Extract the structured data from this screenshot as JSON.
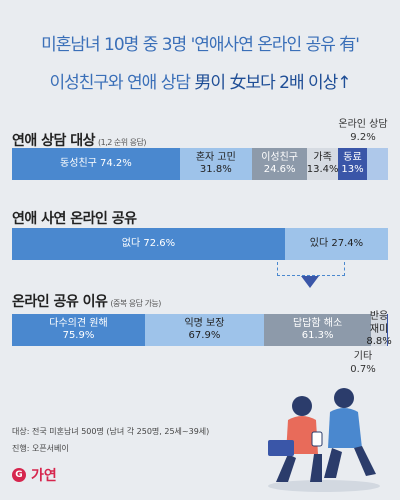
{
  "header": {
    "line1": "미혼남녀 10명 중 3명 '연애사연 온라인 공유 有'",
    "line2_a": "이성친구와 연애 상담 ",
    "line2_b": "男이 女보다 2배 이상↑"
  },
  "chart_data": [
    {
      "type": "bar",
      "title": "연애 상담 대상",
      "subtitle": "(1,2 순위 응답)",
      "categories": [
        "동성친구",
        "혼자 고민",
        "이성친구",
        "가족",
        "동료",
        "온라인 상담"
      ],
      "labels": [
        "동성친구 74.2%",
        "혼자 고민\n31.8%",
        "이성친구\n24.6%",
        "가족\n13.4%",
        "동료\n13%",
        "온라인 상담\n9.2%"
      ],
      "values": [
        74.2,
        31.8,
        24.6,
        13.4,
        13.0,
        9.2
      ],
      "colors": [
        "#4a88cf",
        "#9ec3ea",
        "#8d9aaa",
        "#d6dbe2",
        "#3a56a8",
        "#aec8ea"
      ]
    },
    {
      "type": "bar",
      "title": "연애 사연 온라인 공유",
      "subtitle": "",
      "categories": [
        "없다",
        "있다"
      ],
      "labels": [
        "없다 72.6%",
        "있다 27.4%"
      ],
      "values": [
        72.6,
        27.4
      ],
      "colors": [
        "#4a88cf",
        "#9ec3ea"
      ]
    },
    {
      "type": "bar",
      "title": "온라인 공유 이유",
      "subtitle": "(중복 응답 가능)",
      "categories": [
        "다수의견 원해",
        "익명 보장",
        "답답함 해소",
        "반응 재미",
        "기타"
      ],
      "labels": [
        "다수의견 원해\n75.9%",
        "익명 보장\n67.9%",
        "답답함 해소\n61.3%",
        "반응 재미\n8.8%",
        "기타\n0.7%"
      ],
      "values": [
        75.9,
        67.9,
        61.3,
        8.8,
        0.7
      ],
      "colors": [
        "#4a88cf",
        "#9ec3ea",
        "#8d9aaa",
        "#d6dbe2",
        "#3a56a8"
      ]
    }
  ],
  "footer": {
    "line1": "대상: 전국 미혼남녀 500명 (남녀 각 250명, 25세~39세)",
    "line2": "진행: 오픈서베이"
  },
  "logo": {
    "text": "가연"
  },
  "colors": {
    "title_blue": "#3a6fb8",
    "accent_red": "#d6254d"
  }
}
